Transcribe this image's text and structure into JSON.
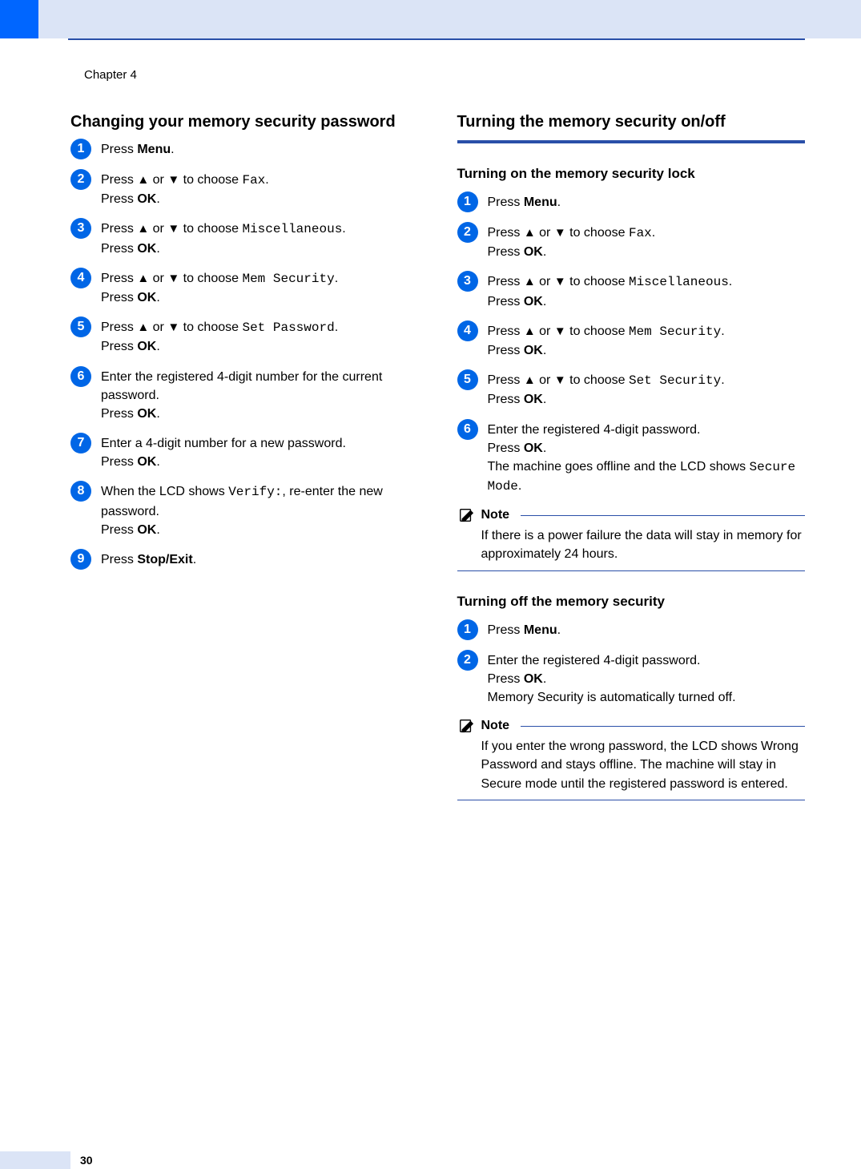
{
  "chapter_label": "Chapter 4",
  "page_number": "30",
  "colors": {
    "accent_blue": "#0066ff",
    "rule_blue": "#2a4fa8",
    "light_blue": "#dbe4f6",
    "badge_blue": "#0066e6"
  },
  "left": {
    "heading": "Changing your memory security password",
    "steps": [
      {
        "n": "1",
        "html": "Press <b>Menu</b>."
      },
      {
        "n": "2",
        "html": "Press <span class='arrow'>▲</span> or <span class='arrow'>▼</span> to choose <span class='mono'>Fax</span>.<br>Press <b>OK</b>."
      },
      {
        "n": "3",
        "html": "Press <span class='arrow'>▲</span> or <span class='arrow'>▼</span> to choose <span class='mono'>Miscellaneous</span>.<br>Press <b>OK</b>."
      },
      {
        "n": "4",
        "html": "Press <span class='arrow'>▲</span> or <span class='arrow'>▼</span> to choose <span class='mono'>Mem Security</span>.<br>Press <b>OK</b>."
      },
      {
        "n": "5",
        "html": "Press <span class='arrow'>▲</span> or <span class='arrow'>▼</span> to choose <span class='mono'>Set Password</span>.<br>Press <b>OK</b>."
      },
      {
        "n": "6",
        "html": "Enter the registered 4-digit number for the current password.<br>Press <b>OK</b>."
      },
      {
        "n": "7",
        "html": "Enter a 4-digit number for a new password.<br>Press <b>OK</b>."
      },
      {
        "n": "8",
        "html": "When the LCD shows <span class='mono'>Verify:</span>, re-enter the new password.<br>Press <b>OK</b>."
      },
      {
        "n": "9",
        "html": "Press <b>Stop/Exit</b>."
      }
    ]
  },
  "right": {
    "heading": "Turning the memory security on/off",
    "sub1": "Turning on the memory security lock",
    "steps1": [
      {
        "n": "1",
        "html": "Press <b>Menu</b>."
      },
      {
        "n": "2",
        "html": "Press <span class='arrow'>▲</span> or <span class='arrow'>▼</span> to choose <span class='mono'>Fax</span>.<br>Press <b>OK</b>."
      },
      {
        "n": "3",
        "html": "Press <span class='arrow'>▲</span> or <span class='arrow'>▼</span> to choose <span class='mono'>Miscellaneous</span>.<br>Press <b>OK</b>."
      },
      {
        "n": "4",
        "html": "Press <span class='arrow'>▲</span> or <span class='arrow'>▼</span> to choose <span class='mono'>Mem Security</span>.<br>Press <b>OK</b>."
      },
      {
        "n": "5",
        "html": "Press <span class='arrow'>▲</span> or <span class='arrow'>▼</span> to choose <span class='mono'>Set Security</span>.<br>Press <b>OK</b>."
      },
      {
        "n": "6",
        "html": "Enter the registered 4-digit password.<br>Press <b>OK</b>.<br>The machine goes offline and the LCD shows <span class='mono'>Secure Mode</span>."
      }
    ],
    "note1_label": "Note",
    "note1_body": "If there is a power failure the data will stay in memory for approximately 24 hours.",
    "sub2": "Turning off the memory security",
    "steps2": [
      {
        "n": "1",
        "html": "Press <b>Menu</b>."
      },
      {
        "n": "2",
        "html": "Enter the registered 4-digit password.<br>Press <b>OK</b>.<br>Memory Security is automatically turned off."
      }
    ],
    "note2_label": "Note",
    "note2_body_html": "If you enter the wrong password, the LCD shows <span class='mono'>Wrong Password</span> and stays offline. The machine will stay in Secure mode until the registered password is entered."
  }
}
